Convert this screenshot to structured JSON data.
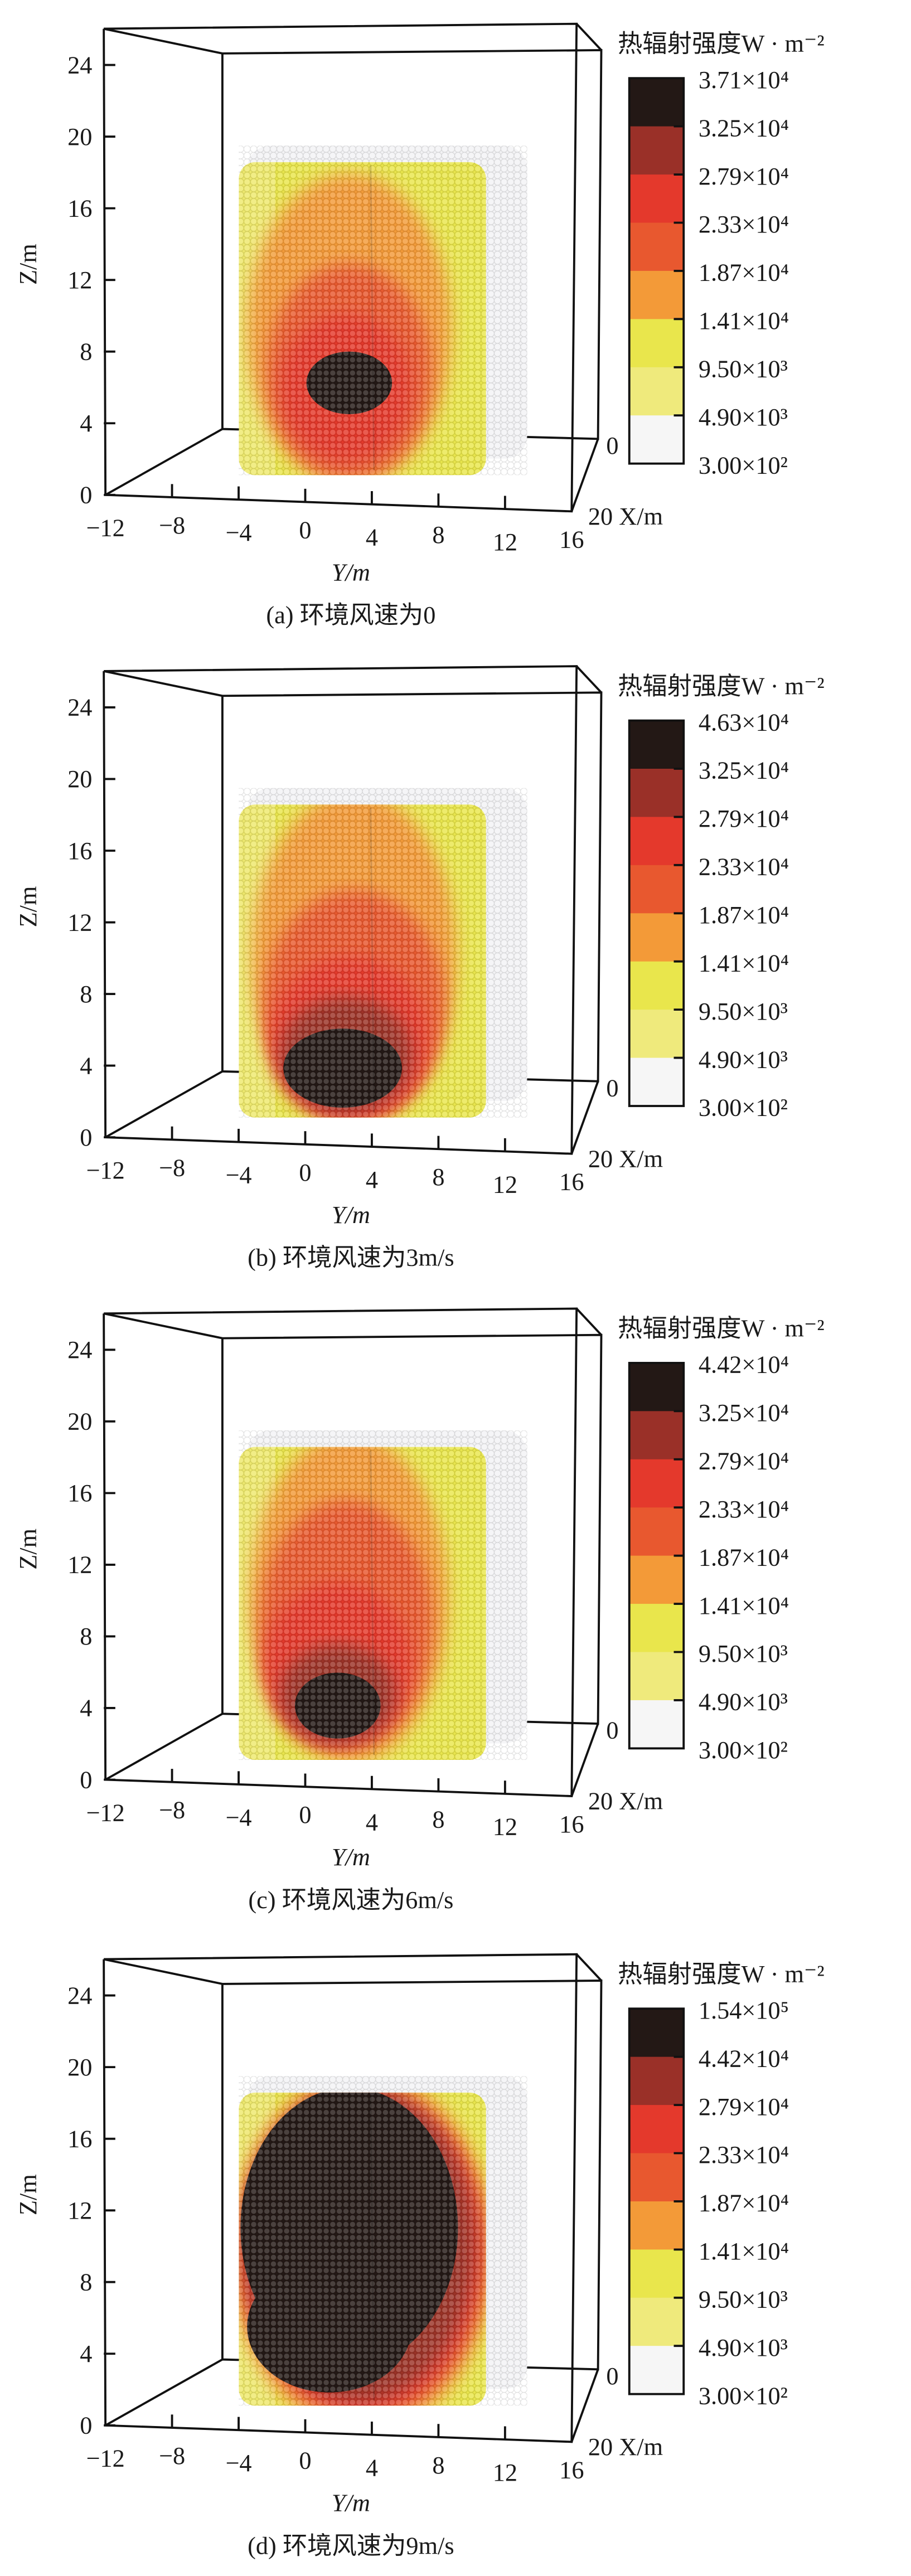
{
  "chart_data": {
    "type": "heatmap",
    "description_type": "3d-scatter-colormap",
    "axes": {
      "z_label": "Z/m",
      "y_label": "Y/m",
      "x_label": "20 X/m",
      "x_origin_label": "0",
      "z_ticks": [
        "0",
        "4",
        "8",
        "12",
        "16",
        "20",
        "24"
      ],
      "y_ticks": [
        "−12",
        "−8",
        "−4",
        "0",
        "4",
        "8",
        "12",
        "16"
      ],
      "z_range": [
        0,
        24
      ],
      "y_range": [
        -12,
        16
      ],
      "x_range": [
        0,
        20
      ]
    },
    "colors": [
      "#231815",
      "#9a3028",
      "#e4392c",
      "#e8582f",
      "#f39a38",
      "#e9e64c",
      "#efea7c",
      "#f6f6f6"
    ],
    "panels": [
      {
        "caption": "(a) 环境风速为0",
        "legend_title": "热辐射强度W · m⁻²",
        "legend_labels": [
          "3.71×10⁴",
          "3.25×10⁴",
          "2.79×10⁴",
          "2.33×10⁴",
          "1.87×10⁴",
          "1.41×10⁴",
          "9.50×10³",
          "4.90×10³",
          "3.00×10²"
        ],
        "wind_speed_mps": 0
      },
      {
        "caption": "(b) 环境风速为3m/s",
        "legend_title": "热辐射强度W · m⁻²",
        "legend_labels": [
          "4.63×10⁴",
          "3.25×10⁴",
          "2.79×10⁴",
          "2.33×10⁴",
          "1.87×10⁴",
          "1.41×10⁴",
          "9.50×10³",
          "4.90×10³",
          "3.00×10²"
        ],
        "wind_speed_mps": 3
      },
      {
        "caption": "(c) 环境风速为6m/s",
        "legend_title": "热辐射强度W · m⁻²",
        "legend_labels": [
          "4.42×10⁴",
          "3.25×10⁴",
          "2.79×10⁴",
          "2.33×10⁴",
          "1.87×10⁴",
          "1.41×10⁴",
          "9.50×10³",
          "4.90×10³",
          "3.00×10²"
        ],
        "wind_speed_mps": 6
      },
      {
        "caption": "(d) 环境风速为9m/s",
        "legend_title": "热辐射强度W · m⁻²",
        "legend_labels": [
          "1.54×10⁵",
          "4.42×10⁴",
          "2.79×10⁴",
          "2.33×10⁴",
          "1.87×10⁴",
          "1.41×10⁴",
          "9.50×10³",
          "4.90×10³",
          "3.00×10²"
        ],
        "wind_speed_mps": 9
      }
    ]
  }
}
